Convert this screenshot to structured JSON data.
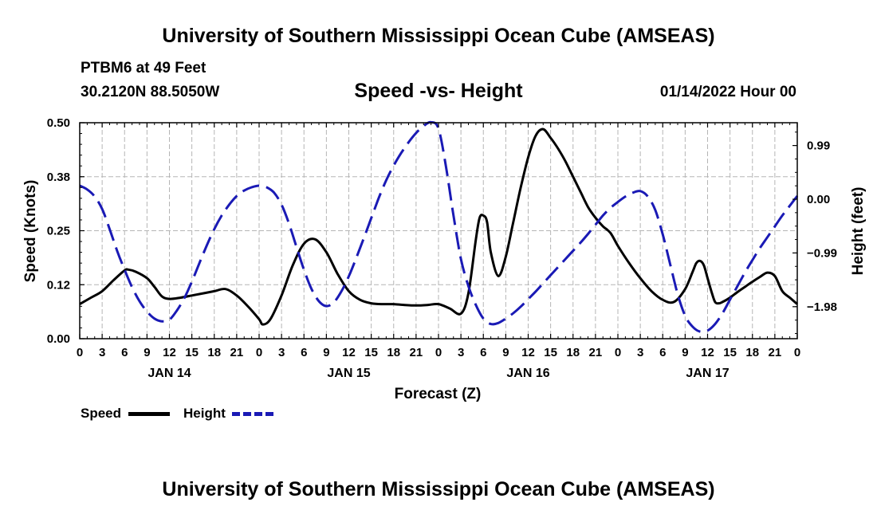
{
  "page": {
    "title": "University of Southern Mississippi Ocean Cube (AMSEAS)",
    "footer_title": "University of Southern Mississippi Ocean Cube (AMSEAS)"
  },
  "station": {
    "name": "PTBM6 at 49 Feet",
    "coords": "30.2120N  88.5050W"
  },
  "plot_title": "Speed -vs- Height",
  "datetime": "01/14/2022 Hour 00",
  "legend": {
    "speed": "Speed",
    "height": "Height"
  },
  "colors": {
    "speed": "#000000",
    "height": "#1a1ab5",
    "grid": "#b5b5b5"
  },
  "chart_data": {
    "type": "line",
    "title": "Speed -vs- Height",
    "xlabel": "Forecast (Z)",
    "ylabel": "Speed (Knots)",
    "y2label": "Height (feet)",
    "xlim": [
      0,
      96
    ],
    "ylim": [
      0,
      0.5
    ],
    "y2lim": [
      -2.57,
      1.41
    ],
    "x_tick_labels": [
      "0",
      "3",
      "6",
      "9",
      "12",
      "15",
      "18",
      "21",
      "0",
      "3",
      "6",
      "9",
      "12",
      "15",
      "18",
      "21",
      "0",
      "3",
      "6",
      "9",
      "12",
      "15",
      "18",
      "21",
      "0",
      "3",
      "6",
      "9",
      "12",
      "15",
      "18",
      "21",
      "0"
    ],
    "day_labels": [
      {
        "label": "JAN 14",
        "x": 12
      },
      {
        "label": "JAN 15",
        "x": 36
      },
      {
        "label": "JAN 16",
        "x": 60
      },
      {
        "label": "JAN 17",
        "x": 84
      }
    ],
    "y_ticks": [
      {
        "value": 0,
        "label": "0.00"
      },
      {
        "value": 0.125,
        "label": "0.12"
      },
      {
        "value": 0.25,
        "label": "0.25"
      },
      {
        "value": 0.375,
        "label": "0.38"
      },
      {
        "value": 0.5,
        "label": "0.50"
      }
    ],
    "y2_ticks": [
      {
        "value": 0.99,
        "label": "0.99"
      },
      {
        "value": 0.0,
        "label": "0.00"
      },
      {
        "value": -0.99,
        "label": "−0.99"
      },
      {
        "value": -1.98,
        "label": "−1.98"
      }
    ],
    "series": [
      {
        "name": "Speed",
        "axis": "left",
        "style": "solid",
        "x": [
          0,
          1.5,
          3,
          4.5,
          6,
          6.5,
          7.5,
          9,
          10,
          11,
          12,
          13.5,
          15,
          16.5,
          18,
          19.5,
          21,
          22.5,
          24,
          24.5,
          25.5,
          27,
          28.5,
          30,
          31.5,
          33,
          34.5,
          36,
          37.5,
          39,
          40.5,
          42,
          43.5,
          45,
          46.5,
          48,
          49.5,
          51,
          52,
          53,
          53.5,
          54,
          54.5,
          55,
          56,
          57,
          58,
          59,
          60,
          61,
          62,
          63,
          64,
          65,
          66,
          67,
          68,
          69,
          70,
          71,
          72,
          73.5,
          75,
          76.5,
          78,
          79.5,
          81,
          82,
          82.5,
          83,
          83.5,
          84,
          84.5,
          85,
          85.5,
          86,
          87,
          88,
          89,
          90,
          91,
          92,
          93,
          94,
          95,
          96
        ],
        "y": [
          0.08,
          0.095,
          0.11,
          0.135,
          0.158,
          0.16,
          0.155,
          0.14,
          0.12,
          0.098,
          0.092,
          0.095,
          0.1,
          0.105,
          0.11,
          0.115,
          0.1,
          0.075,
          0.045,
          0.033,
          0.045,
          0.1,
          0.17,
          0.22,
          0.23,
          0.2,
          0.15,
          0.11,
          0.09,
          0.082,
          0.08,
          0.08,
          0.078,
          0.077,
          0.078,
          0.08,
          0.07,
          0.058,
          0.105,
          0.23,
          0.28,
          0.285,
          0.27,
          0.2,
          0.145,
          0.19,
          0.27,
          0.35,
          0.42,
          0.47,
          0.485,
          0.465,
          0.44,
          0.41,
          0.375,
          0.34,
          0.305,
          0.28,
          0.26,
          0.245,
          0.215,
          0.175,
          0.14,
          0.11,
          0.09,
          0.085,
          0.115,
          0.155,
          0.175,
          0.18,
          0.17,
          0.14,
          0.11,
          0.085,
          0.082,
          0.085,
          0.095,
          0.108,
          0.12,
          0.132,
          0.143,
          0.153,
          0.145,
          0.11,
          0.095,
          0.08
        ]
      },
      {
        "name": "Height",
        "axis": "right",
        "style": "dashed",
        "x": [
          0,
          1,
          2,
          3,
          4,
          5,
          6,
          7,
          8,
          9,
          10,
          11,
          12,
          13,
          14,
          15,
          16,
          17,
          18,
          19,
          20,
          21,
          22,
          23,
          24,
          25,
          26,
          27,
          28,
          29,
          30,
          31,
          32,
          33,
          34,
          35,
          36,
          37,
          38,
          39,
          40,
          41,
          42,
          43,
          44,
          45,
          46,
          47,
          48,
          49,
          50,
          51,
          52,
          53,
          54,
          55,
          56,
          57,
          58,
          59,
          60,
          61,
          62,
          63,
          64,
          65,
          66,
          67,
          68,
          69,
          70,
          71,
          72,
          73,
          74,
          75,
          76,
          77,
          78,
          79,
          80,
          81,
          82,
          83,
          84,
          85,
          86,
          87,
          88,
          89,
          90,
          91,
          92,
          93,
          94,
          95,
          96
        ],
        "y": [
          0.25,
          0.18,
          0.05,
          -0.18,
          -0.55,
          -0.95,
          -1.3,
          -1.62,
          -1.88,
          -2.07,
          -2.2,
          -2.25,
          -2.22,
          -2.05,
          -1.82,
          -1.52,
          -1.18,
          -0.85,
          -0.55,
          -0.3,
          -0.1,
          0.06,
          0.16,
          0.22,
          0.25,
          0.22,
          0.12,
          -0.1,
          -0.45,
          -0.88,
          -1.3,
          -1.65,
          -1.88,
          -1.97,
          -1.9,
          -1.7,
          -1.42,
          -1.08,
          -0.72,
          -0.35,
          0.02,
          0.35,
          0.62,
          0.85,
          1.05,
          1.22,
          1.35,
          1.42,
          1.3,
          0.6,
          -0.3,
          -1.1,
          -1.6,
          -1.95,
          -2.2,
          -2.3,
          -2.28,
          -2.2,
          -2.1,
          -1.98,
          -1.84,
          -1.7,
          -1.55,
          -1.4,
          -1.25,
          -1.1,
          -0.95,
          -0.8,
          -0.64,
          -0.47,
          -0.3,
          -0.16,
          -0.05,
          0.05,
          0.12,
          0.15,
          0.05,
          -0.2,
          -0.65,
          -1.2,
          -1.75,
          -2.15,
          -2.35,
          -2.44,
          -2.42,
          -2.3,
          -2.1,
          -1.85,
          -1.6,
          -1.35,
          -1.12,
          -0.9,
          -0.7,
          -0.5,
          -0.3,
          -0.12,
          0.06
        ]
      }
    ]
  }
}
